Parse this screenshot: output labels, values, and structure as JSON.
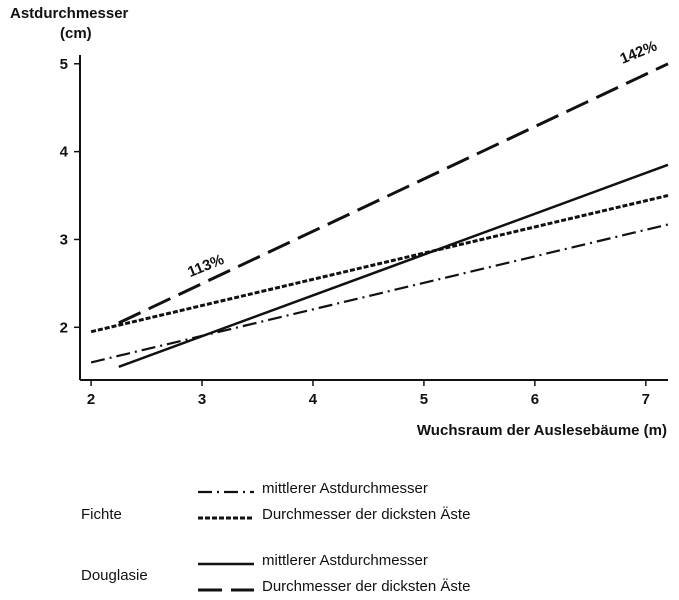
{
  "chart_data": {
    "type": "line",
    "ylabel": "Astdurchmesser",
    "yunit": "(cm)",
    "xlabel": "Wuchsraum der Auslesebäume (m)",
    "xlim": [
      1.9,
      7.2
    ],
    "ylim": [
      1.4,
      5.1
    ],
    "xticks": [
      2,
      3,
      4,
      5,
      6,
      7
    ],
    "yticks": [
      2,
      3,
      4,
      5
    ],
    "grid": false,
    "legend_position": "bottom",
    "series": [
      {
        "group": "Fichte",
        "name": "mittlerer Astdurchmesser",
        "style": "dashdot",
        "x": [
          2.0,
          7.2
        ],
        "y": [
          1.6,
          3.17
        ]
      },
      {
        "group": "Fichte",
        "name": "Durchmesser der dicksten Äste",
        "style": "dotted",
        "x": [
          2.0,
          7.2
        ],
        "y": [
          1.95,
          3.5
        ]
      },
      {
        "group": "Douglasie",
        "name": "mittlerer Astdurchmesser",
        "style": "solid",
        "x": [
          2.25,
          7.2
        ],
        "y": [
          1.55,
          3.85
        ]
      },
      {
        "group": "Douglasie",
        "name": "Durchmesser der dicksten Äste",
        "style": "longdash",
        "x": [
          2.25,
          7.2
        ],
        "y": [
          2.05,
          5.0
        ]
      }
    ],
    "annotations": [
      {
        "text": "113%",
        "x": 3.05,
        "y": 2.65,
        "angle": -22
      },
      {
        "text": "142%",
        "x": 6.95,
        "y": 5.08,
        "angle": -22
      }
    ]
  },
  "legend": {
    "groups": [
      {
        "label": "Fichte",
        "items": [
          {
            "style": "dashdot",
            "label": "mittlerer Astdurchmesser"
          },
          {
            "style": "dotted",
            "label": "Durchmesser der dicksten Äste"
          }
        ]
      },
      {
        "label": "Douglasie",
        "items": [
          {
            "style": "solid",
            "label": "mittlerer Astdurchmesser"
          },
          {
            "style": "longdash",
            "label": "Durchmesser der dicksten Äste"
          }
        ]
      }
    ]
  }
}
